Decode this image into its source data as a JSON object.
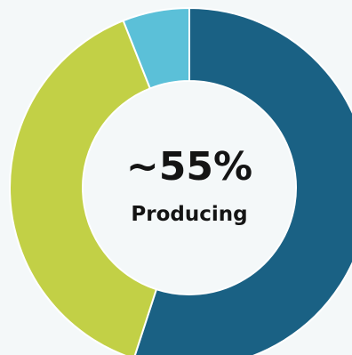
{
  "chart_data": {
    "type": "pie",
    "donut": true,
    "start_angle_deg": 0,
    "direction": "clockwise",
    "slices": [
      {
        "value": 55,
        "color": "#1a6184"
      },
      {
        "value": 39,
        "color": "#c2d046"
      },
      {
        "value": 6,
        "color": "#5bc0d8"
      }
    ],
    "center_text": {
      "value": "~55%",
      "caption": "Producing"
    }
  },
  "colors": {
    "background": "#f4f8f9",
    "hole": "#f4f8f9",
    "separator": "#ffffff",
    "text": "#141414"
  }
}
